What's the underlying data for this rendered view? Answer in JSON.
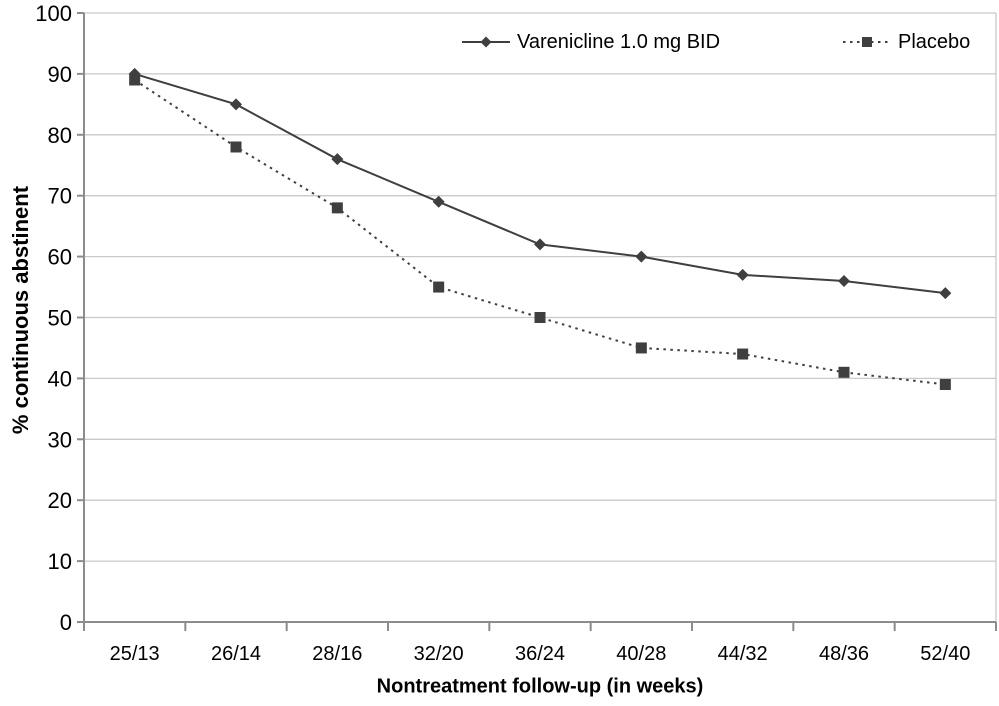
{
  "chart_data": {
    "type": "line",
    "title": "",
    "categories": [
      "25/13",
      "26/14",
      "28/16",
      "32/20",
      "36/24",
      "40/28",
      "44/32",
      "48/36",
      "52/40"
    ],
    "series": [
      {
        "name": "Varenicline 1.0 mg BID",
        "marker": "diamond",
        "line_style": "solid",
        "values": [
          90,
          85,
          76,
          69,
          62,
          60,
          57,
          56,
          54
        ]
      },
      {
        "name": "Placebo",
        "marker": "square",
        "line_style": "dotted",
        "values": [
          89,
          78,
          68,
          55,
          50,
          45,
          44,
          41,
          39
        ]
      }
    ],
    "xlabel": "Nontreatment follow-up (in weeks)",
    "ylabel": "% continuous abstinent",
    "ylim": [
      0,
      100
    ],
    "ytick_interval": 10,
    "ytick_labels": [
      "0",
      "10",
      "20",
      "30",
      "40",
      "50",
      "60",
      "70",
      "80",
      "90",
      "100"
    ],
    "grid": "horizontal",
    "legend_position": "top-inside",
    "colors": {
      "series": "#3f3f3f",
      "gridline": "#c9c9c9",
      "axis": "#8c8c8c",
      "text": "#000000",
      "background": "#ffffff"
    }
  }
}
